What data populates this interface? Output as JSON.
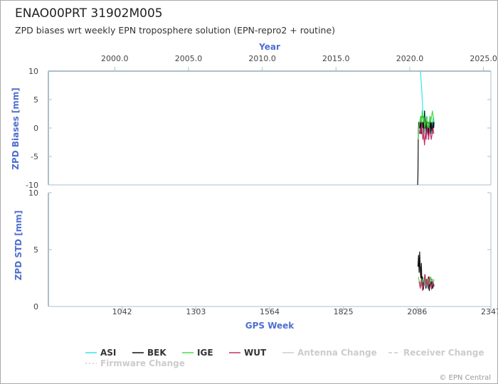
{
  "header": {
    "title": "ENAO00PRT 31902M005",
    "subtitle": "ZPD biases wrt weekly EPN troposphere solution (EPN-repro2 + routine)"
  },
  "credit": "© EPN Central",
  "colors": {
    "axis": "#aabfcc",
    "axis_title": "#4f6fd0",
    "tick_label": "#444444",
    "ASI": "#33e6e6",
    "BEK": "#111111",
    "IGE": "#44dd44",
    "WUT": "#c0306a",
    "inactive": "#cccccc"
  },
  "chart_data": [
    {
      "type": "line",
      "panel": "bias",
      "ylabel": "ZPD Biases [mm]",
      "ylim": [
        -10,
        10
      ],
      "yticks": [
        "10",
        "5",
        "0",
        "-5",
        "-10"
      ],
      "top_axis": {
        "title": "Year",
        "range": [
          1995.5,
          2025.5
        ],
        "ticks": [
          "2000.0",
          "2005.0",
          "2010.0",
          "2015.0",
          "2020.0",
          "2025.0"
        ]
      },
      "xlim": [
        781,
        2347
      ],
      "series": [
        {
          "name": "ASI",
          "x": [
            2098,
            2103,
            2107,
            2110,
            2113,
            2116,
            2119,
            2122,
            2125,
            2128,
            2131,
            2134,
            2137,
            2140,
            2143,
            2146
          ],
          "y": [
            10,
            6,
            2,
            1,
            3,
            0,
            2,
            -1,
            1,
            0,
            2,
            1,
            -1,
            1,
            2,
            0
          ]
        },
        {
          "name": "BEK",
          "x": [
            2088,
            2089,
            2090,
            2091,
            2092,
            2094,
            2096,
            2098,
            2100,
            2102,
            2104,
            2106,
            2108,
            2110,
            2112,
            2114,
            2116,
            2118,
            2120,
            2122,
            2124,
            2126,
            2128,
            2130,
            2132,
            2134,
            2136,
            2138,
            2140,
            2142,
            2144,
            2146
          ],
          "y": [
            -10,
            -8,
            -2,
            0,
            1,
            0,
            1,
            -1,
            2,
            -1,
            1,
            0,
            2,
            -1,
            3,
            0,
            1,
            -1,
            2,
            0,
            1,
            -2,
            1,
            0,
            2,
            -1,
            1,
            0,
            -1,
            1,
            0,
            1
          ]
        },
        {
          "name": "IGE",
          "x": [
            2090,
            2092,
            2095,
            2098,
            2101,
            2104,
            2107,
            2110,
            2113,
            2116,
            2119,
            2122,
            2125,
            2128,
            2131,
            2134,
            2137,
            2140,
            2143,
            2146
          ],
          "y": [
            -2,
            0,
            1,
            2,
            1,
            3,
            1,
            2,
            0,
            1,
            2,
            0,
            1,
            0,
            2,
            1,
            2,
            3,
            2,
            1
          ]
        },
        {
          "name": "WUT",
          "x": [
            2094,
            2097,
            2100,
            2103,
            2106,
            2109,
            2112,
            2115,
            2118,
            2121,
            2124,
            2127,
            2130,
            2133,
            2136,
            2139,
            2142,
            2145
          ],
          "y": [
            -1,
            0,
            -1,
            1,
            -2,
            -1,
            -3,
            -1,
            -2,
            0,
            -1,
            -2,
            0,
            -1,
            -2,
            -1,
            0,
            -1
          ]
        }
      ]
    },
    {
      "type": "line",
      "panel": "std",
      "ylabel": "ZPD STD [mm]",
      "ylim": [
        0,
        10
      ],
      "yticks": [
        "10",
        "5",
        "0"
      ],
      "xlabel": "GPS Week",
      "xlim": [
        781,
        2347
      ],
      "xticks": [
        "1042",
        "1303",
        "1564",
        "1825",
        "2086",
        "2347"
      ],
      "series": [
        {
          "name": "ASI",
          "x": [
            2098,
            2102,
            2106,
            2110,
            2114,
            2118,
            2122,
            2126,
            2130,
            2134,
            2138,
            2142,
            2146
          ],
          "y": [
            3.5,
            2.5,
            2.0,
            1.8,
            2.2,
            1.6,
            2.0,
            1.5,
            1.8,
            2.2,
            1.6,
            1.9,
            1.7
          ]
        },
        {
          "name": "BEK",
          "x": [
            2089,
            2091,
            2093,
            2095,
            2097,
            2099,
            2101,
            2103,
            2105,
            2108,
            2111,
            2114,
            2117,
            2120,
            2123,
            2126,
            2129,
            2132,
            2135,
            2138,
            2141,
            2144,
            2146
          ],
          "y": [
            3.5,
            4.5,
            3.0,
            4.8,
            3.2,
            2.5,
            3.8,
            1.8,
            2.6,
            1.5,
            2.2,
            2.8,
            1.6,
            2.4,
            1.8,
            2.6,
            1.4,
            2.2,
            1.8,
            2.4,
            1.6,
            2.0,
            1.8
          ]
        },
        {
          "name": "IGE",
          "x": [
            2090,
            2094,
            2098,
            2102,
            2106,
            2110,
            2114,
            2118,
            2122,
            2126,
            2130,
            2134,
            2138,
            2142,
            2146
          ],
          "y": [
            2.6,
            2.2,
            2.0,
            1.8,
            2.4,
            2.0,
            2.6,
            2.2,
            1.8,
            2.4,
            2.0,
            2.6,
            2.2,
            2.0,
            2.4
          ]
        },
        {
          "name": "WUT",
          "x": [
            2093,
            2097,
            2101,
            2105,
            2109,
            2113,
            2117,
            2121,
            2125,
            2129,
            2133,
            2137,
            2141,
            2145
          ],
          "y": [
            2.2,
            1.6,
            2.4,
            1.4,
            2.0,
            2.8,
            1.8,
            2.4,
            1.6,
            2.6,
            2.0,
            1.5,
            2.2,
            1.8
          ]
        }
      ]
    }
  ],
  "legend": {
    "items": [
      {
        "label": "ASI",
        "color": "#33e6e6",
        "style": "solid",
        "active": true
      },
      {
        "label": "BEK",
        "color": "#111111",
        "style": "solid",
        "active": true
      },
      {
        "label": "IGE",
        "color": "#44dd44",
        "style": "solid",
        "active": true
      },
      {
        "label": "WUT",
        "color": "#c0306a",
        "style": "solid",
        "active": true
      },
      {
        "label": "Antenna Change",
        "color": "#cccccc",
        "style": "solid",
        "active": false
      },
      {
        "label": "Receiver Change",
        "color": "#cccccc",
        "style": "dashed",
        "active": false
      },
      {
        "label": "Firmware Change",
        "color": "#cccccc",
        "style": "dotted",
        "active": false
      }
    ]
  }
}
